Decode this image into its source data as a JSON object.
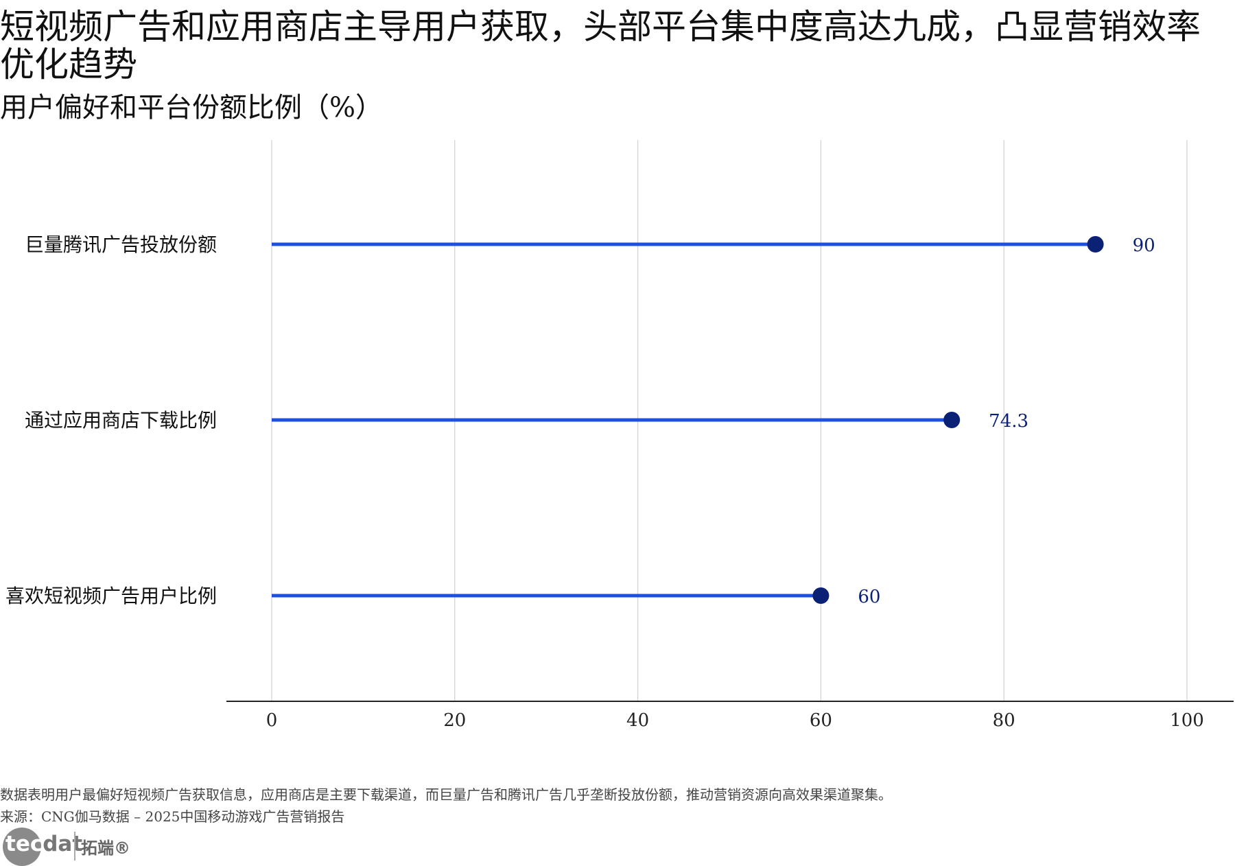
{
  "title": "短视频广告和应用商店主导用户获取，头部平台集中度高达九成，凸显营销效率优化趋势",
  "subtitle": "用户偏好和平台份额比例（%）",
  "chart_data": {
    "type": "lollipop",
    "orientation": "horizontal",
    "categories": [
      "巨量腾讯广告投放份额",
      "通过应用商店下载比例",
      "喜欢短视频广告用户比例"
    ],
    "values": [
      90,
      74.3,
      60
    ],
    "value_labels": [
      "90",
      "74.3",
      "60"
    ],
    "x_ticks": [
      "0",
      "20",
      "40",
      "60",
      "80",
      "100"
    ],
    "xlim": [
      0,
      100
    ],
    "grid": "vertical",
    "colors": {
      "stem": "#1f4fe0",
      "dot": "#0b2176",
      "label": "#0b2176",
      "grid": "#d0d0d0",
      "axis": "#222222"
    }
  },
  "footer": {
    "note": "数据表明用户最偏好短视频广告获取信息，应用商店是主要下载渠道，而巨量广告和腾讯广告几乎垄断投放份额，推动营销资源向高效果渠道聚集。",
    "source": "来源：CNG伽马数据 – 2025中国移动游戏广告营销报告"
  },
  "logo": {
    "text_light": "tec",
    "text_dark": "dat",
    "cn": "拓端®"
  }
}
